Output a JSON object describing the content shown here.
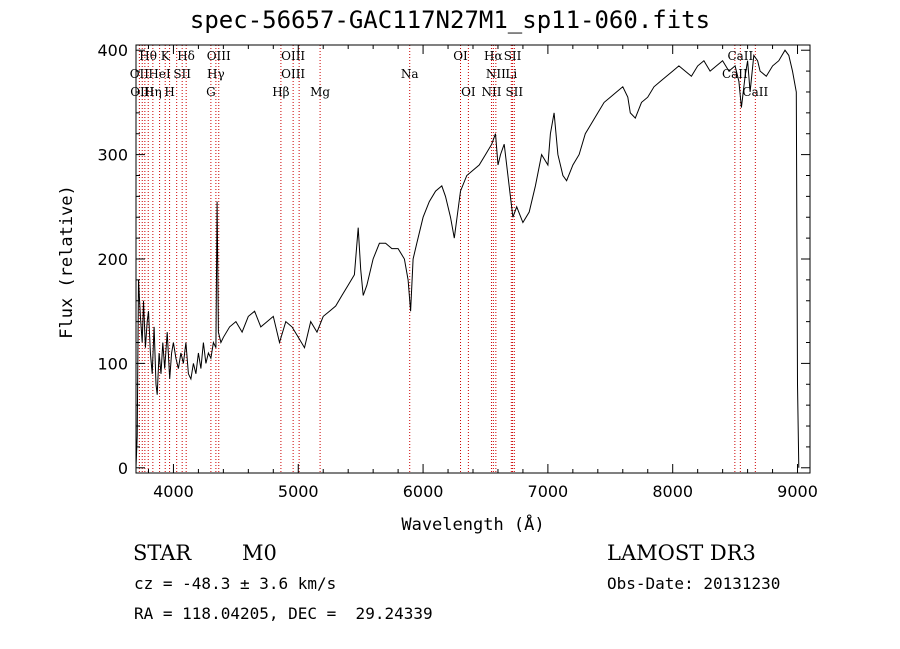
{
  "chart_data": {
    "type": "line",
    "title": "spec-56657-GAC117N27M1_sp11-060.fits",
    "xlabel": "Wavelength (Å)",
    "ylabel": "Flux (relative)",
    "xlim": [
      3700,
      9100
    ],
    "ylim": [
      -5,
      405
    ],
    "xticks": [
      4000,
      5000,
      6000,
      7000,
      8000,
      9000
    ],
    "yticks": [
      0,
      100,
      200,
      300,
      400
    ],
    "grid": false,
    "series": [
      {
        "x": [
          3700,
          3710,
          3720,
          3735,
          3750,
          3760,
          3775,
          3790,
          3800,
          3815,
          3830,
          3845,
          3860,
          3870,
          3885,
          3900,
          3915,
          3930,
          3950,
          3970,
          3985,
          4000,
          4020,
          4040,
          4060,
          4080,
          4100,
          4120,
          4140,
          4160,
          4180,
          4200,
          4220,
          4240,
          4260,
          4280,
          4300,
          4320,
          4340,
          4350,
          4360,
          4380,
          4400,
          4450,
          4500,
          4550,
          4600,
          4650,
          4700,
          4750,
          4800,
          4850,
          4900,
          4950,
          5000,
          5050,
          5100,
          5150,
          5200,
          5250,
          5300,
          5350,
          5400,
          5450,
          5480,
          5500,
          5520,
          5550,
          5600,
          5650,
          5700,
          5750,
          5800,
          5850,
          5880,
          5900,
          5920,
          5950,
          6000,
          6050,
          6100,
          6150,
          6180,
          6220,
          6250,
          6300,
          6350,
          6400,
          6450,
          6500,
          6550,
          6580,
          6600,
          6620,
          6650,
          6700,
          6720,
          6750,
          6800,
          6850,
          6900,
          6950,
          7000,
          7020,
          7050,
          7080,
          7100,
          7120,
          7150,
          7200,
          7250,
          7300,
          7350,
          7400,
          7450,
          7500,
          7550,
          7600,
          7640,
          7660,
          7700,
          7750,
          7800,
          7850,
          7900,
          7950,
          8000,
          8050,
          8100,
          8150,
          8200,
          8250,
          8300,
          8350,
          8400,
          8450,
          8500,
          8530,
          8550,
          8580,
          8600,
          8620,
          8650,
          8680,
          8700,
          8750,
          8800,
          8850,
          8900,
          8930,
          8960,
          8990,
          9000,
          9010
        ],
        "y": [
          0,
          30,
          180,
          145,
          120,
          160,
          115,
          140,
          150,
          110,
          90,
          135,
          80,
          70,
          110,
          90,
          120,
          95,
          130,
          85,
          110,
          120,
          105,
          95,
          110,
          100,
          120,
          90,
          85,
          100,
          90,
          110,
          95,
          120,
          100,
          110,
          105,
          120,
          115,
          255,
          130,
          120,
          125,
          135,
          140,
          130,
          145,
          150,
          135,
          140,
          145,
          120,
          140,
          135,
          125,
          115,
          140,
          130,
          145,
          150,
          155,
          165,
          175,
          185,
          230,
          190,
          165,
          175,
          200,
          215,
          215,
          210,
          210,
          200,
          180,
          150,
          200,
          215,
          240,
          255,
          265,
          270,
          260,
          240,
          220,
          265,
          280,
          285,
          290,
          300,
          310,
          320,
          290,
          300,
          310,
          260,
          240,
          250,
          235,
          245,
          270,
          300,
          290,
          320,
          340,
          300,
          290,
          280,
          275,
          290,
          300,
          320,
          330,
          340,
          350,
          355,
          360,
          365,
          355,
          340,
          335,
          350,
          355,
          365,
          370,
          375,
          380,
          385,
          380,
          375,
          385,
          390,
          380,
          385,
          390,
          380,
          385,
          370,
          345,
          375,
          390,
          360,
          395,
          390,
          380,
          375,
          385,
          390,
          400,
          395,
          380,
          360,
          80,
          0
        ]
      }
    ],
    "lines": {
      "wavelengths": [
        3727,
        3750,
        3771,
        3798,
        3835,
        3889,
        3934,
        3969,
        4026,
        4070,
        4102,
        4300,
        4340,
        4363,
        4861,
        4959,
        5007,
        5175,
        5893,
        6300,
        6363,
        6548,
        6563,
        6583,
        6707,
        6717,
        6731,
        8498,
        8542,
        8662
      ],
      "labels": [
        {
          "text": "Hθ",
          "x": 3797,
          "row": 0
        },
        {
          "text": "K",
          "x": 3934,
          "row": 0
        },
        {
          "text": "Hδ",
          "x": 4101,
          "row": 0
        },
        {
          "text": "OIII",
          "x": 4363,
          "row": 0
        },
        {
          "text": "OIII",
          "x": 4959,
          "row": 0
        },
        {
          "text": "OI",
          "x": 6300,
          "row": 0
        },
        {
          "text": "Hα",
          "x": 6563,
          "row": 0
        },
        {
          "text": "SII",
          "x": 6717,
          "row": 0
        },
        {
          "text": "CaII",
          "x": 8542,
          "row": 0
        },
        {
          "text": "OII",
          "x": 3727,
          "row": 1
        },
        {
          "text": "HeI",
          "x": 3889,
          "row": 1
        },
        {
          "text": "SII",
          "x": 4070,
          "row": 1
        },
        {
          "text": "Hγ",
          "x": 4340,
          "row": 1
        },
        {
          "text": "OIII",
          "x": 4959,
          "row": 1
        },
        {
          "text": "Na",
          "x": 5893,
          "row": 1
        },
        {
          "text": "NII",
          "x": 6583,
          "row": 1
        },
        {
          "text": "Li",
          "x": 6707,
          "row": 1
        },
        {
          "text": "CaII",
          "x": 8498,
          "row": 1
        },
        {
          "text": "OIII",
          "x": 3750,
          "row": 2
        },
        {
          "text": "Hη",
          "x": 3835,
          "row": 2
        },
        {
          "text": "H",
          "x": 3969,
          "row": 2
        },
        {
          "text": "G",
          "x": 4300,
          "row": 2
        },
        {
          "text": "Hβ",
          "x": 4861,
          "row": 2
        },
        {
          "text": "Mg",
          "x": 5175,
          "row": 2
        },
        {
          "text": "OI",
          "x": 6363,
          "row": 2
        },
        {
          "text": "NII",
          "x": 6548,
          "row": 2
        },
        {
          "text": "SII",
          "x": 6731,
          "row": 2
        },
        {
          "text": "CaII",
          "x": 8662,
          "row": 2
        }
      ]
    },
    "colors": {
      "spectrum": "#000000",
      "lines": "#cc0000",
      "axes": "#000000"
    }
  },
  "info": {
    "object_class": "STAR",
    "subclass": "M0",
    "survey": "LAMOST DR3",
    "cz": "cz = -48.3 ± 3.6 km/s",
    "obs_date": "Obs-Date: 20131230",
    "coords": "RA = 118.04205, DEC =  29.24339"
  }
}
